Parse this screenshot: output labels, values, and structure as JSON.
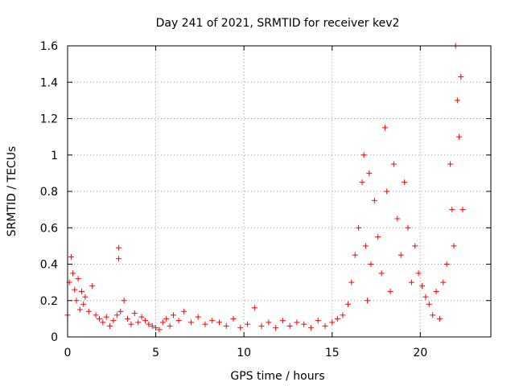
{
  "chart_data": {
    "type": "scatter",
    "title": "Day 241 of 2021, SRMTID for receiver kev2",
    "xlabel": "GPS time / hours",
    "ylabel": "SRMTID / TECUs",
    "xlim": [
      0,
      24
    ],
    "ylim": [
      0,
      1.6
    ],
    "xticks": [
      0,
      5,
      10,
      15,
      20
    ],
    "yticks": [
      0,
      0.2,
      0.4,
      0.6,
      0.8,
      1,
      1.2,
      1.4,
      1.6
    ],
    "xtick_labels": [
      "0",
      "5",
      "10",
      "15",
      "20"
    ],
    "ytick_labels": [
      "0",
      "0.2",
      "0.4",
      "0.6",
      "0.8",
      "1",
      "1.2",
      "1.4",
      "1.6"
    ],
    "grid": true,
    "marker": "+",
    "marker_color": "#ff0000",
    "series": [
      {
        "name": "kev2",
        "x": [
          0.0,
          0.1,
          0.2,
          0.3,
          0.4,
          0.5,
          0.6,
          0.7,
          0.8,
          0.9,
          1.0,
          1.2,
          1.4,
          1.6,
          1.8,
          2.0,
          2.2,
          2.4,
          2.6,
          2.8,
          2.9,
          2.9,
          3.0,
          3.2,
          3.4,
          3.6,
          3.8,
          4.0,
          4.2,
          4.4,
          4.6,
          4.8,
          5.0,
          5.2,
          5.4,
          5.6,
          5.8,
          6.0,
          6.3,
          6.6,
          7.0,
          7.4,
          7.8,
          8.2,
          8.6,
          9.0,
          9.4,
          9.8,
          10.2,
          10.6,
          11.0,
          11.4,
          11.8,
          12.2,
          12.6,
          13.0,
          13.4,
          13.8,
          14.2,
          14.6,
          15.0,
          15.3,
          15.6,
          15.9,
          16.1,
          16.3,
          16.5,
          16.7,
          16.8,
          16.9,
          17.0,
          17.1,
          17.2,
          17.4,
          17.6,
          17.8,
          18.0,
          18.1,
          18.3,
          18.5,
          18.7,
          18.9,
          19.1,
          19.3,
          19.5,
          19.7,
          19.9,
          20.1,
          20.3,
          20.5,
          20.7,
          20.9,
          21.1,
          21.3,
          21.5,
          21.7,
          21.8,
          21.9,
          22.0,
          22.1,
          22.2,
          22.3,
          22.4
        ],
        "y": [
          0.12,
          0.3,
          0.44,
          0.35,
          0.26,
          0.2,
          0.32,
          0.15,
          0.25,
          0.18,
          0.22,
          0.14,
          0.28,
          0.12,
          0.1,
          0.08,
          0.11,
          0.06,
          0.09,
          0.12,
          0.49,
          0.43,
          0.14,
          0.2,
          0.1,
          0.07,
          0.13,
          0.08,
          0.11,
          0.09,
          0.07,
          0.06,
          0.05,
          0.04,
          0.08,
          0.1,
          0.06,
          0.12,
          0.09,
          0.14,
          0.08,
          0.11,
          0.07,
          0.09,
          0.08,
          0.06,
          0.1,
          0.05,
          0.07,
          0.16,
          0.06,
          0.08,
          0.05,
          0.09,
          0.06,
          0.08,
          0.07,
          0.05,
          0.09,
          0.06,
          0.08,
          0.1,
          0.12,
          0.18,
          0.3,
          0.45,
          0.6,
          0.85,
          1.0,
          0.5,
          0.2,
          0.9,
          0.4,
          0.75,
          0.55,
          0.35,
          1.15,
          0.8,
          0.25,
          0.95,
          0.65,
          0.45,
          0.85,
          0.6,
          0.3,
          0.5,
          0.35,
          0.28,
          0.22,
          0.18,
          0.12,
          0.25,
          0.1,
          0.3,
          0.4,
          0.95,
          0.7,
          0.5,
          1.6,
          1.3,
          1.1,
          1.43,
          0.7
        ]
      }
    ]
  }
}
